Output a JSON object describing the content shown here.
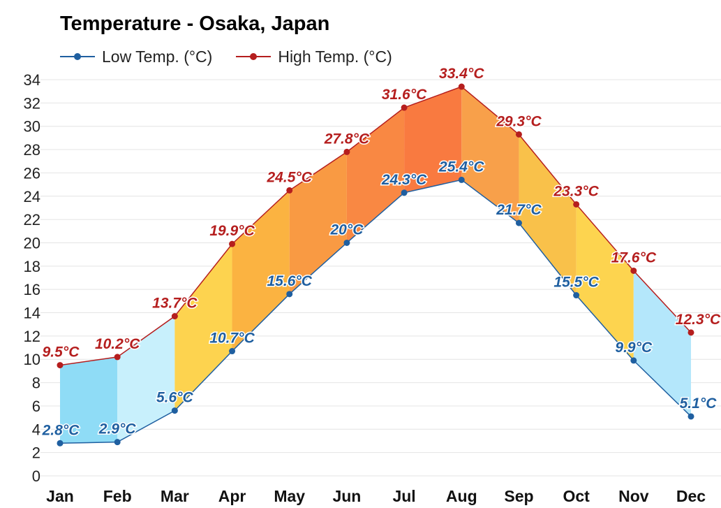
{
  "chart_data": {
    "type": "line",
    "title": "Temperature - Osaka, Japan",
    "categories": [
      "Jan",
      "Feb",
      "Mar",
      "Apr",
      "May",
      "Jun",
      "Jul",
      "Aug",
      "Sep",
      "Oct",
      "Nov",
      "Dec"
    ],
    "series": [
      {
        "name": "Low Temp. (°C)",
        "color": "#1f5fa0",
        "values": [
          2.8,
          2.9,
          5.6,
          10.7,
          15.6,
          20,
          24.3,
          25.4,
          21.7,
          15.5,
          9.9,
          5.1
        ],
        "labels": [
          "2.8°C",
          "2.9°C",
          "5.6°C",
          "10.7°C",
          "15.6°C",
          "20°C",
          "24.3°C",
          "25.4°C",
          "21.7°C",
          "15.5°C",
          "9.9°C",
          "5.1°C"
        ]
      },
      {
        "name": "High Temp. (°C)",
        "color": "#b51e1e",
        "values": [
          9.5,
          10.2,
          13.7,
          19.9,
          24.5,
          27.8,
          31.6,
          33.4,
          29.3,
          23.3,
          17.6,
          12.3
        ],
        "labels": [
          "9.5°C",
          "10.2°C",
          "13.7°C",
          "19.9°C",
          "24.5°C",
          "27.8°C",
          "31.6°C",
          "33.4°C",
          "29.3°C",
          "23.3°C",
          "17.6°C",
          "12.3°C"
        ]
      }
    ],
    "ylim": [
      0,
      34
    ],
    "yticks": [
      "0",
      "2",
      "4",
      "6",
      "8",
      "10",
      "12",
      "14",
      "16",
      "18",
      "20",
      "22",
      "24",
      "26",
      "28",
      "30",
      "32",
      "34"
    ],
    "grid": true,
    "legend": "top-left",
    "fill_colors": [
      "#8fdcf6",
      "#c8f0fc",
      "#fdd34f",
      "#fbb341",
      "#f99a43",
      "#f98843",
      "#f97a40",
      "#f8a04a",
      "#f9c14a",
      "#fdd44f",
      "#b4e7fb",
      "#b4e7fb"
    ]
  }
}
